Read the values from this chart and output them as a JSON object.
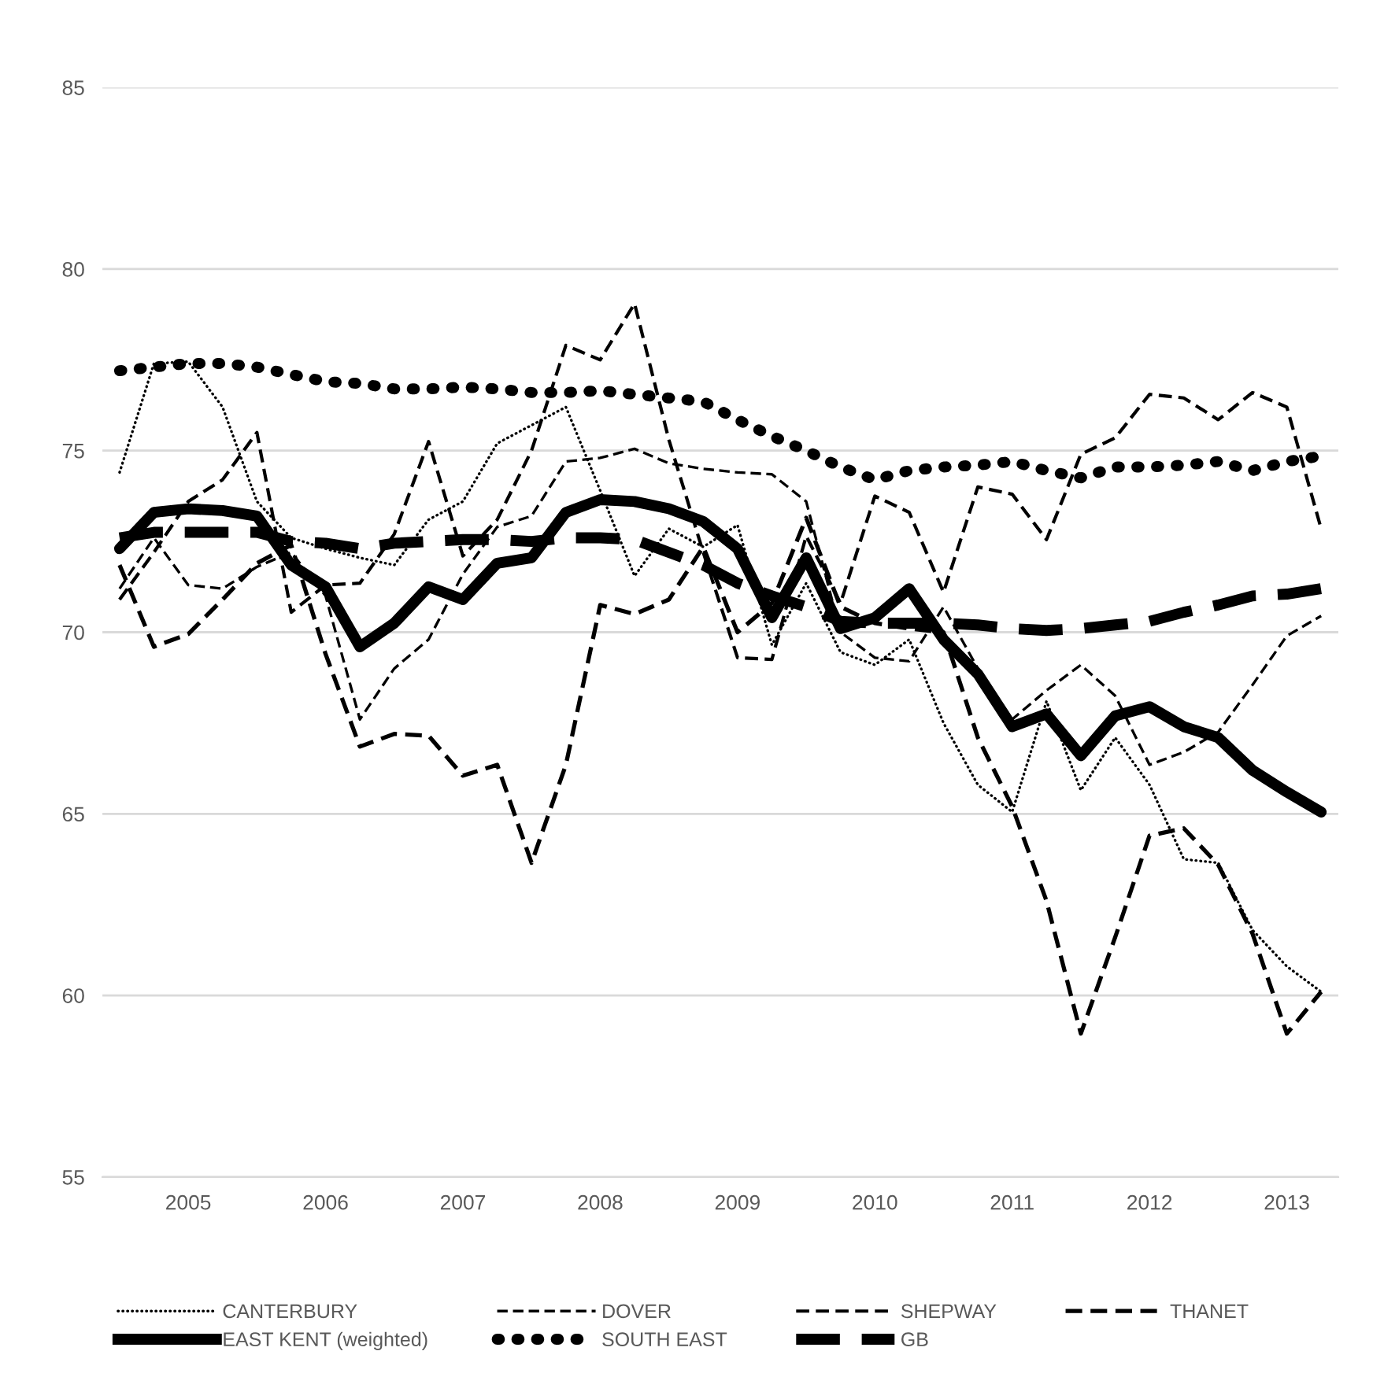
{
  "chart_data": {
    "type": "line",
    "categories": [
      null,
      null,
      "2005",
      null,
      null,
      null,
      "2006",
      null,
      null,
      null,
      "2007",
      null,
      null,
      null,
      "2008",
      null,
      null,
      null,
      "2009",
      null,
      null,
      null,
      "2010",
      null,
      null,
      null,
      "2011",
      null,
      null,
      null,
      "2012",
      null,
      null,
      null,
      "2013",
      null
    ],
    "ylim": [
      55,
      85
    ],
    "yticks": [
      55,
      60,
      65,
      70,
      75,
      80,
      85
    ],
    "grid": "y",
    "legend": "bottom",
    "series": [
      {
        "name": "CANTERBURY",
        "color": "#000000",
        "line_style": "dotted",
        "values": [
          74.4,
          77.4,
          77.45,
          76.2,
          73.6,
          72.6,
          72.3,
          72.05,
          71.85,
          73.1,
          73.6,
          75.2,
          75.7,
          76.2,
          73.9,
          71.55,
          72.85,
          72.35,
          72.95,
          69.65,
          71.35,
          69.45,
          69.1,
          69.8,
          67.5,
          65.8,
          65.05,
          68.1,
          65.65,
          67.1,
          65.8,
          63.75,
          63.65,
          61.8,
          60.8,
          60.1
        ]
      },
      {
        "name": "DOVER",
        "color": "#000000",
        "line_style": "dashed",
        "values": [
          71.2,
          72.6,
          71.3,
          71.2,
          71.8,
          72.2,
          71.0,
          67.6,
          69.0,
          69.8,
          71.6,
          72.9,
          73.2,
          74.7,
          74.8,
          75.05,
          74.65,
          74.5,
          74.4,
          74.35,
          73.6,
          70.0,
          69.3,
          69.2,
          70.7,
          69.0,
          67.6,
          68.4,
          69.1,
          68.25,
          66.35,
          66.7,
          67.25,
          68.55,
          69.9,
          70.45
        ]
      },
      {
        "name": "SHEPWAY",
        "color": "#000000",
        "line_style": "dashed",
        "values": [
          70.9,
          72.2,
          73.6,
          74.2,
          75.5,
          70.55,
          71.3,
          71.35,
          72.7,
          75.25,
          72.1,
          73.1,
          75.0,
          77.9,
          77.5,
          79.05,
          75.3,
          72.2,
          69.3,
          69.25,
          72.65,
          70.8,
          73.75,
          73.3,
          71.1,
          74.0,
          73.8,
          72.55,
          74.9,
          75.35,
          76.55,
          76.45,
          75.85,
          76.6,
          76.2,
          72.85
        ]
      },
      {
        "name": "THANET",
        "color": "#000000",
        "line_style": "dashed",
        "values": [
          71.85,
          69.6,
          69.95,
          70.9,
          71.9,
          72.4,
          69.4,
          66.85,
          67.2,
          67.15,
          66.05,
          66.35,
          63.65,
          66.35,
          70.75,
          70.5,
          70.9,
          72.35,
          70.0,
          70.8,
          73.15,
          70.7,
          70.25,
          70.1,
          70.0,
          67.1,
          65.2,
          62.6,
          58.95,
          61.6,
          64.4,
          64.6,
          63.6,
          61.7,
          58.95,
          60.1
        ]
      },
      {
        "name": "EAST KENT (weighted)",
        "color": "#000000",
        "line_style": "solid",
        "values": [
          72.3,
          73.3,
          73.4,
          73.35,
          73.2,
          71.85,
          71.25,
          69.6,
          70.25,
          71.25,
          70.9,
          71.9,
          72.05,
          73.3,
          73.65,
          73.6,
          73.4,
          73.05,
          72.3,
          70.4,
          72.05,
          70.1,
          70.4,
          71.2,
          69.8,
          68.85,
          67.4,
          67.75,
          66.6,
          67.7,
          67.95,
          67.4,
          67.1,
          66.2,
          65.6,
          65.05
        ]
      },
      {
        "name": "SOUTH EAST",
        "color": "#000000",
        "line_style": "dotted",
        "values": [
          77.2,
          77.3,
          77.4,
          77.4,
          77.3,
          77.1,
          76.9,
          76.85,
          76.7,
          76.7,
          76.75,
          76.7,
          76.6,
          76.6,
          76.65,
          76.55,
          76.45,
          76.35,
          75.85,
          75.4,
          75.0,
          74.55,
          74.2,
          74.45,
          74.55,
          74.6,
          74.7,
          74.45,
          74.25,
          74.55,
          74.55,
          74.6,
          74.7,
          74.45,
          74.7,
          74.85
        ]
      },
      {
        "name": "GB",
        "color": "#000000",
        "line_style": "dashed",
        "values": [
          72.6,
          72.75,
          72.75,
          72.75,
          72.75,
          72.5,
          72.45,
          72.3,
          72.45,
          72.5,
          72.55,
          72.55,
          72.5,
          72.6,
          72.6,
          72.55,
          72.2,
          71.85,
          71.35,
          71.0,
          70.7,
          70.3,
          70.25,
          70.25,
          70.25,
          70.2,
          70.1,
          70.05,
          70.1,
          70.2,
          70.3,
          70.55,
          70.75,
          71.0,
          71.05,
          71.2
        ]
      }
    ]
  }
}
